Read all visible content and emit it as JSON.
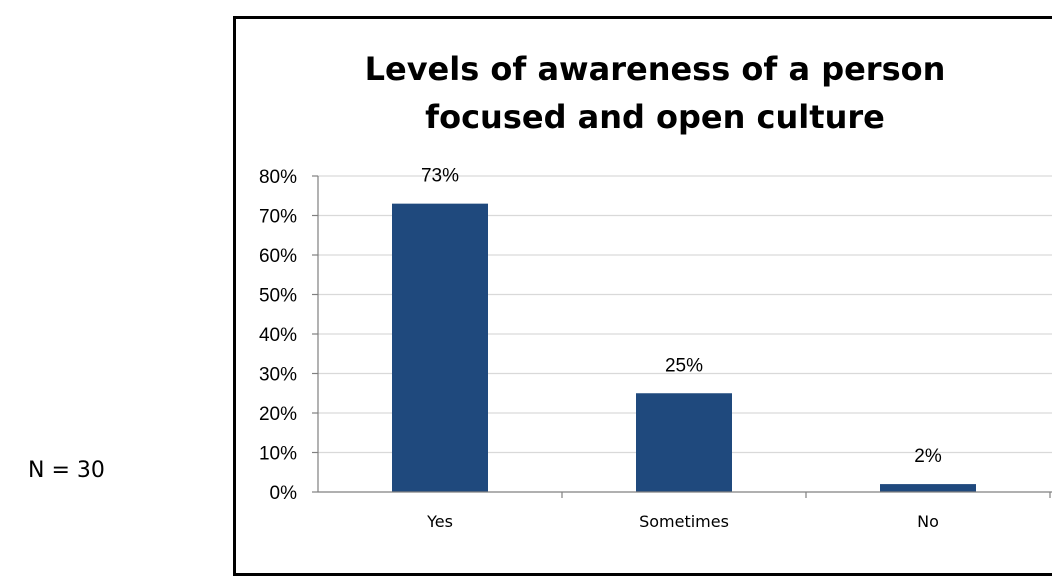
{
  "note": "N = 30",
  "chart_data": {
    "type": "bar",
    "title_lines": [
      "Levels of awareness of a person",
      "focused and open culture"
    ],
    "categories": [
      "Yes",
      "Sometimes",
      "No"
    ],
    "values": [
      73,
      25,
      2
    ],
    "data_labels": [
      "73%",
      "25%",
      "2%"
    ],
    "y_ticks": [
      "0%",
      "10%",
      "20%",
      "30%",
      "40%",
      "50%",
      "60%",
      "70%",
      "80%"
    ],
    "ylim": [
      0,
      80
    ],
    "grid": true,
    "legend": "none",
    "bar_color": "#1F497D",
    "grid_color": "#D9D9D9",
    "axis_color": "#808080"
  }
}
